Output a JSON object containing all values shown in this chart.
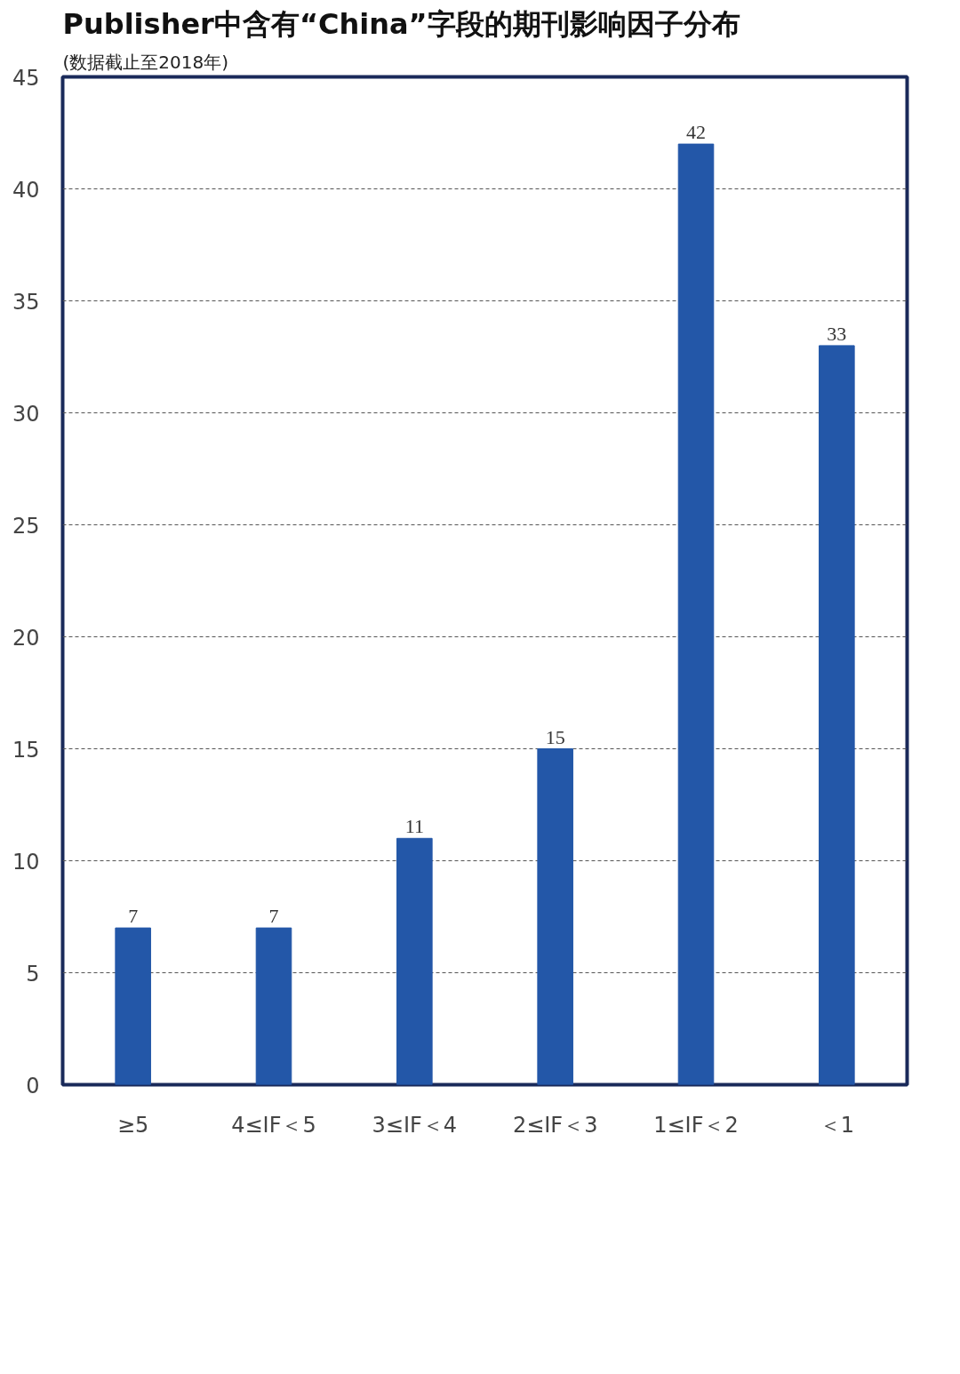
{
  "chart_data": {
    "type": "bar",
    "title": "Publisher中含有“China”字段的期刊影响因子分布",
    "subtitle": "(数据截止至2018年)",
    "categories": [
      "≥5",
      "4≤IF＜5",
      "3≤IF＜4",
      "2≤IF＜3",
      "1≤IF＜2",
      "＜1"
    ],
    "values": [
      7,
      7,
      11,
      15,
      42,
      33
    ],
    "color": "#2357a8",
    "ylim": [
      0,
      45
    ],
    "yticks": [
      0,
      5,
      10,
      15,
      20,
      25,
      30,
      35,
      40,
      45
    ],
    "grid": "y",
    "data_labels": true
  }
}
